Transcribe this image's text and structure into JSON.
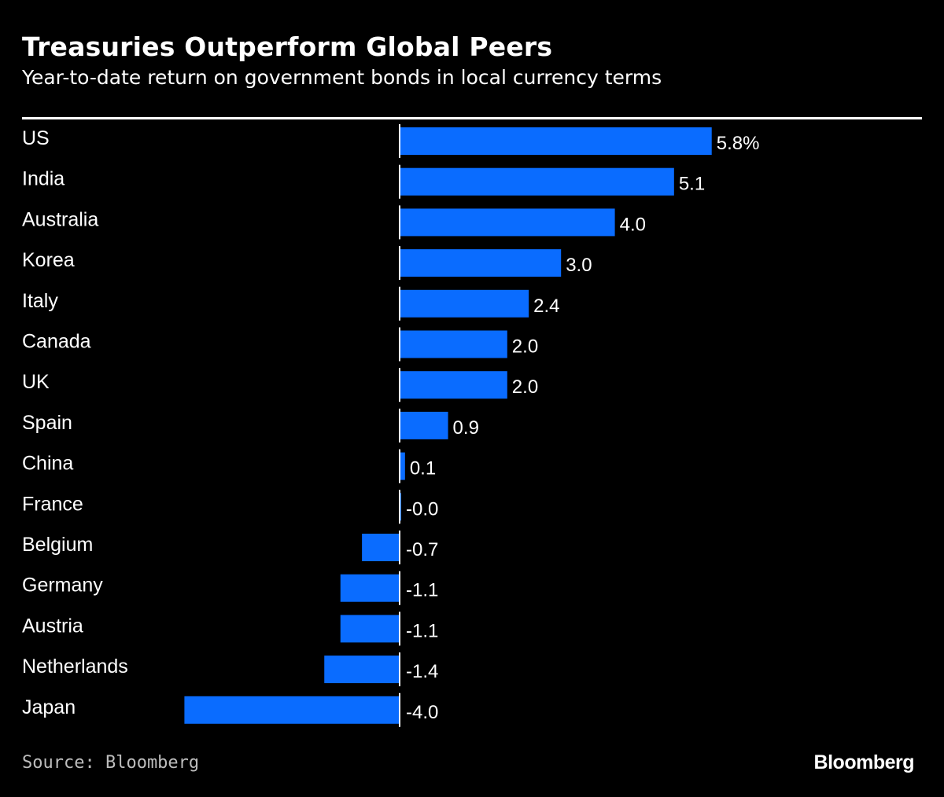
{
  "chart_data": {
    "type": "bar",
    "orientation": "horizontal",
    "title": "Treasuries Outperform Global Peers",
    "subtitle": "Year-to-date return on government bonds in local currency terms",
    "categories": [
      "US",
      "India",
      "Australia",
      "Korea",
      "Italy",
      "Canada",
      "UK",
      "Spain",
      "China",
      "France",
      "Belgium",
      "Germany",
      "Austria",
      "Netherlands",
      "Japan"
    ],
    "values": [
      5.8,
      5.1,
      4.0,
      3.0,
      2.4,
      2.0,
      2.0,
      0.9,
      0.1,
      -0.0,
      -0.7,
      -1.1,
      -1.1,
      -1.4,
      -4.0
    ],
    "data_labels": [
      "5.8%",
      "5.1",
      "4.0",
      "3.0",
      "2.4",
      "2.0",
      "2.0",
      "0.9",
      "0.1",
      "-0.0",
      "-0.7",
      "-1.1",
      "-1.1",
      "-1.4",
      "-4.0"
    ],
    "unit": "%",
    "xlim": [
      -4.0,
      5.8
    ],
    "grid": false,
    "bar_color": "#0a6cff",
    "source": "Source: Bloomberg"
  },
  "branding": {
    "logo": "Bloomberg"
  }
}
